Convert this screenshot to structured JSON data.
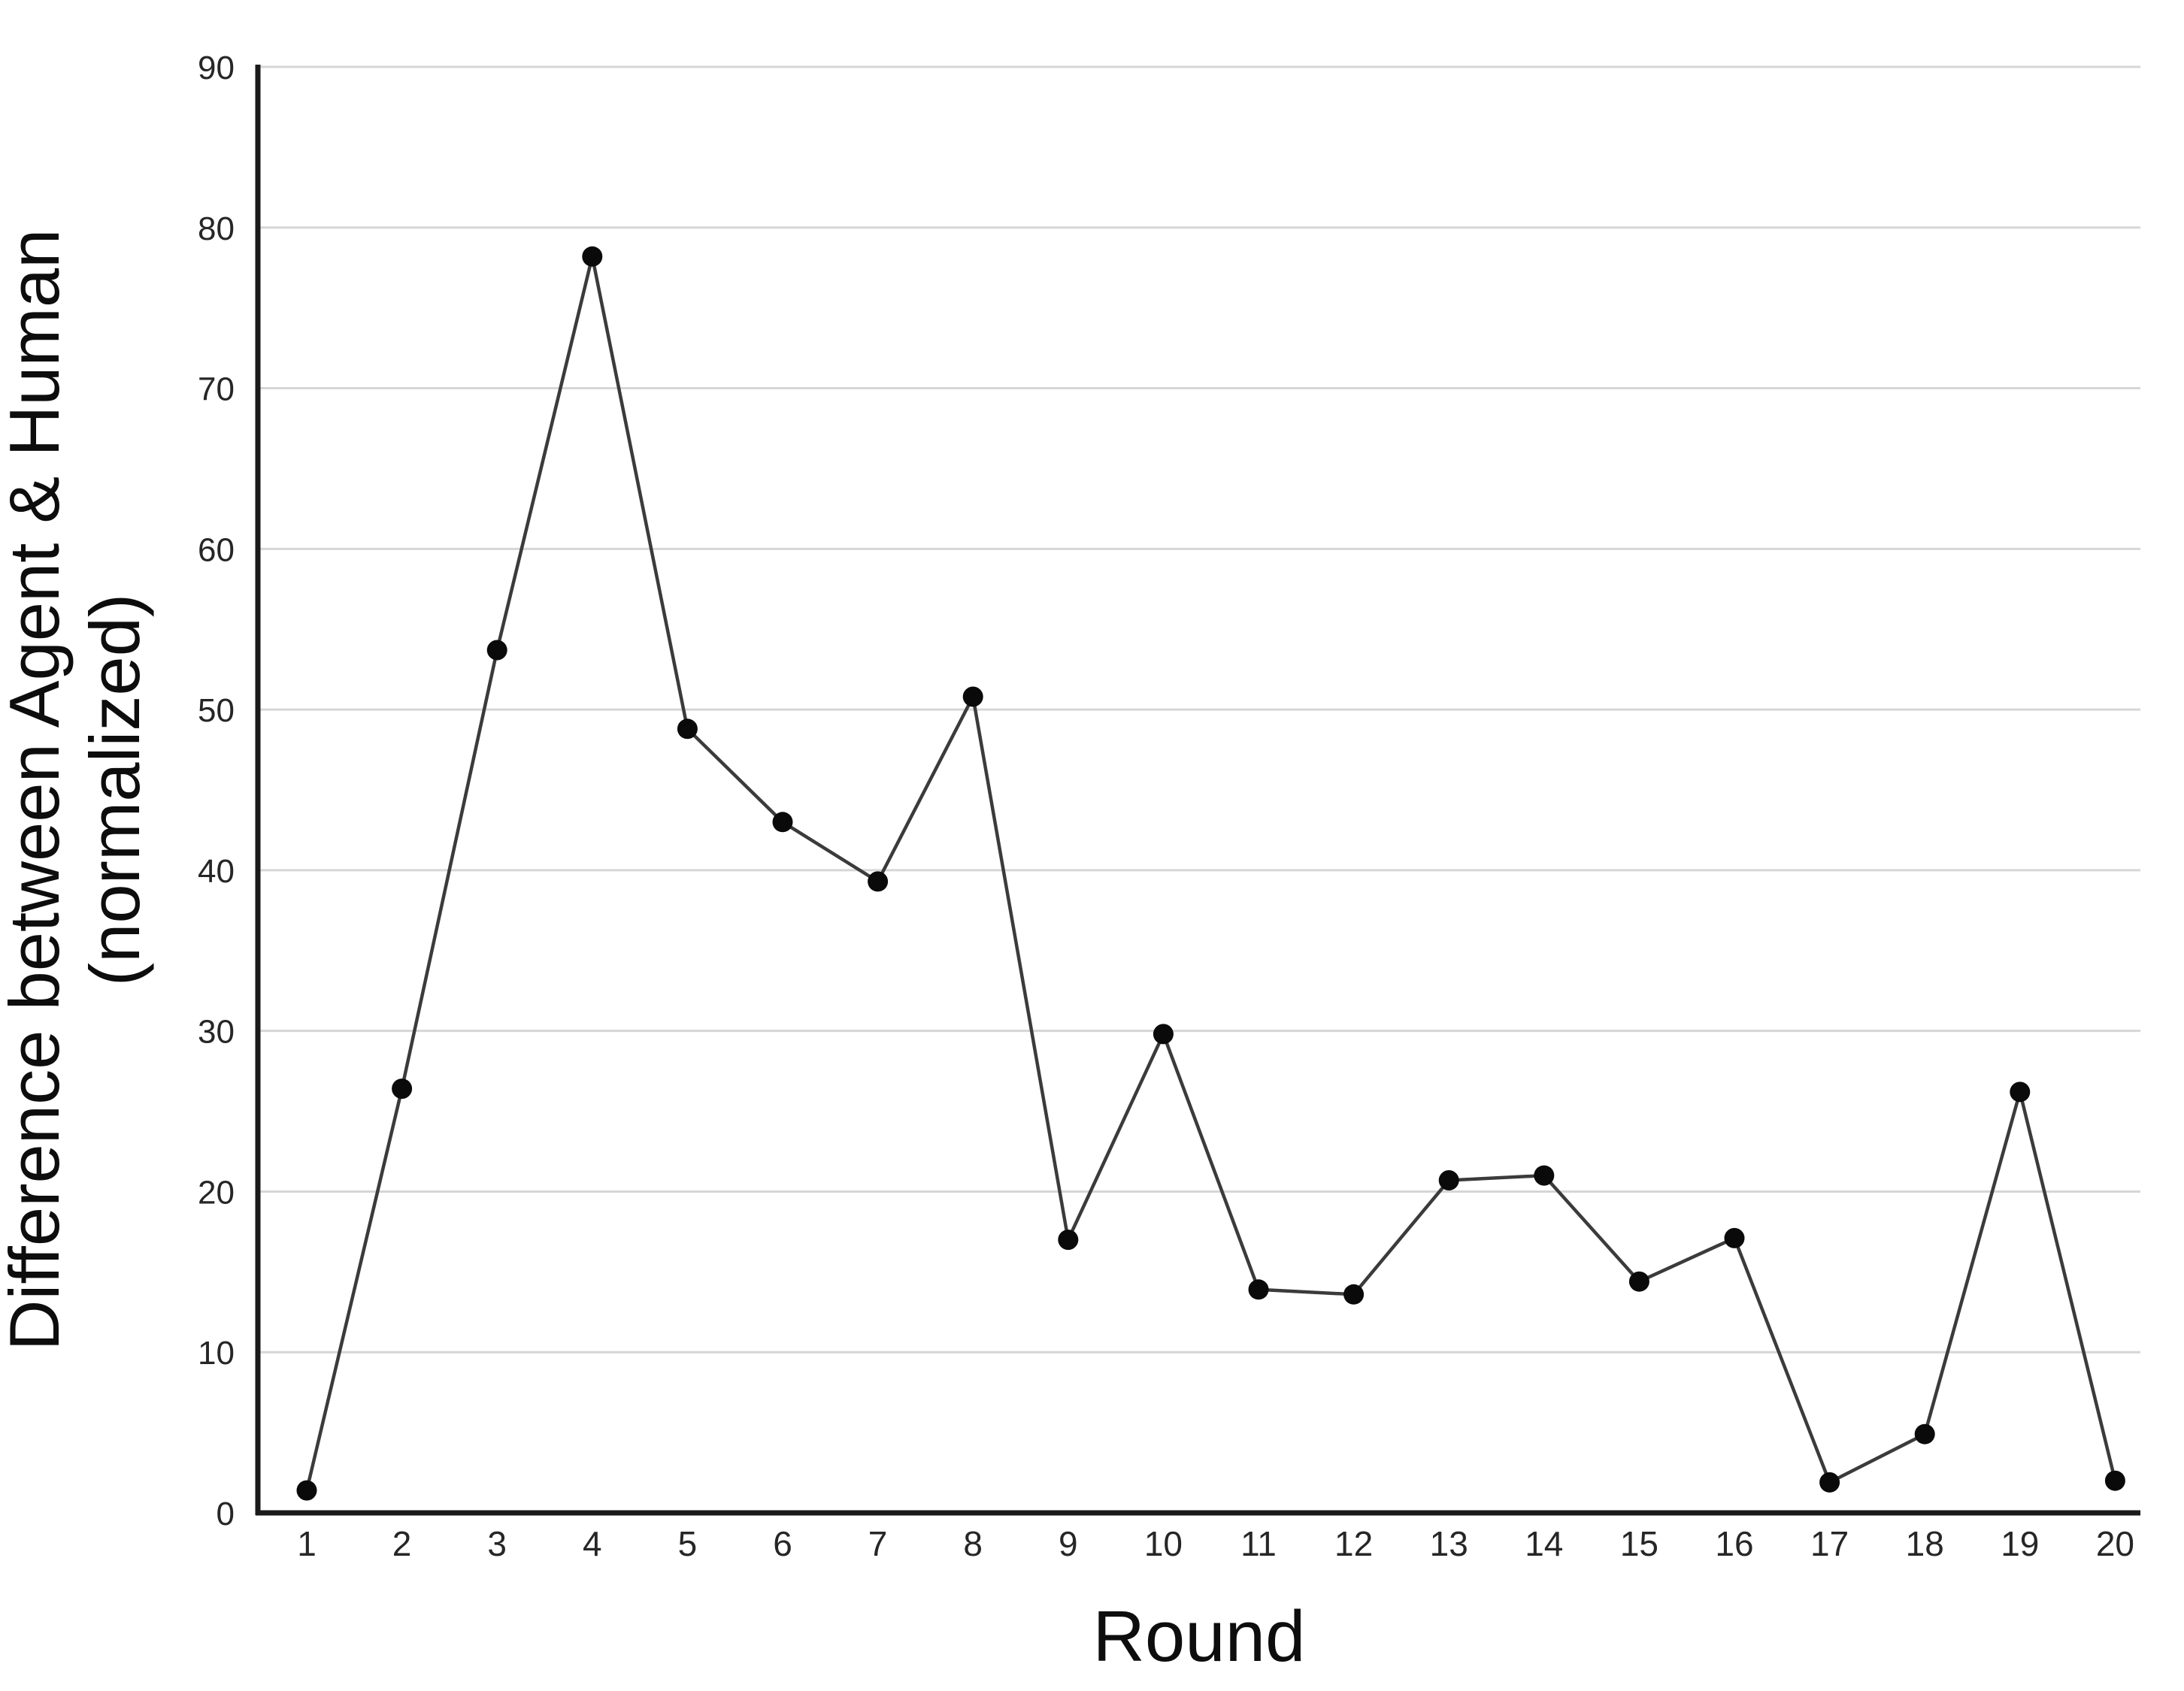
{
  "chart_data": {
    "type": "line",
    "title": "",
    "xlabel": "Round",
    "ylabel_line1": "Difference between Agent & Human",
    "ylabel_line2": "(normalized)",
    "categories": [
      1,
      2,
      3,
      4,
      5,
      6,
      7,
      8,
      9,
      10,
      11,
      12,
      13,
      14,
      15,
      16,
      17,
      18,
      19,
      20
    ],
    "values": [
      1.4,
      26.4,
      53.7,
      78.2,
      48.8,
      43.0,
      39.3,
      50.8,
      17.0,
      29.8,
      13.9,
      13.6,
      20.7,
      21.0,
      14.4,
      17.1,
      1.9,
      4.9,
      26.2,
      2.0
    ],
    "ylim": [
      0,
      90
    ],
    "yticks": [
      0,
      10,
      20,
      30,
      40,
      50,
      60,
      70,
      80,
      90
    ],
    "grid": "horizontal-only",
    "legend_position": "none",
    "marker": "filled-circle",
    "colors": {
      "line": "#3b3b3b",
      "marker": "#0a0a0a",
      "gridline": "#d6d6d6",
      "axis": "#1a1a1a",
      "tick_text": "#262626",
      "title_text": "#0d0d0d",
      "background": "#ffffff"
    }
  }
}
